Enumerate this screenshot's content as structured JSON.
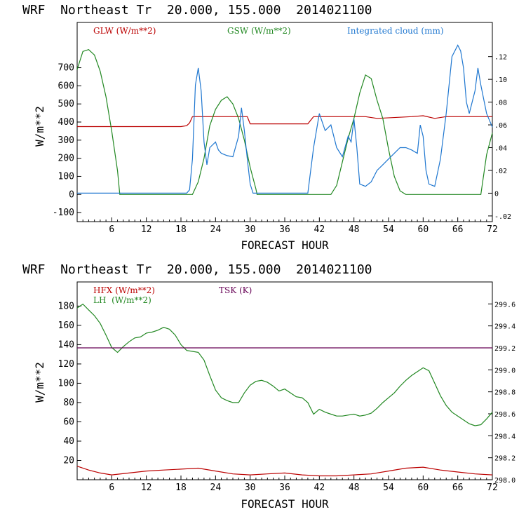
{
  "chart_data": [
    {
      "type": "line",
      "title": "WRF  Northeast Tr  20.000, 155.000  2014021100",
      "xlabel": "FORECAST HOUR",
      "ylabel": "W/m**2",
      "xlim": [
        0,
        72
      ],
      "ylim": [
        -150,
        950
      ],
      "y2lim": [
        -0.025,
        0.15
      ],
      "x_ticks": [
        6,
        12,
        18,
        24,
        30,
        36,
        42,
        48,
        54,
        60,
        66,
        72
      ],
      "y_ticks": [
        -100,
        0,
        100,
        200,
        300,
        400,
        500,
        600,
        700
      ],
      "y2_ticks": [
        -0.02,
        0,
        0.02,
        0.04,
        0.06,
        0.08,
        0.1,
        0.12
      ],
      "y2_tick_labels": [
        "-.02",
        "0",
        ".02",
        ".04",
        ".06",
        ".08",
        ".10",
        ".12"
      ],
      "series": [
        {
          "name": "GLW (W/m**2)",
          "color": "#bb0000",
          "axis": "left",
          "x": [
            0,
            18,
            19,
            19.5,
            20,
            29.5,
            30,
            40,
            40.5,
            41,
            46,
            50,
            52,
            58,
            60,
            62,
            64,
            72
          ],
          "y": [
            375,
            375,
            380,
            395,
            430,
            430,
            390,
            390,
            410,
            430,
            430,
            430,
            420,
            430,
            435,
            420,
            430,
            430
          ]
        },
        {
          "name": "GSW (W/m**2)",
          "color": "#228822",
          "axis": "left",
          "x": [
            0,
            1,
            2,
            3,
            4,
            5,
            6,
            7,
            7.4,
            20,
            21,
            22,
            23,
            24,
            25,
            26,
            27,
            28,
            29,
            30,
            31,
            31.2,
            44,
            45,
            46,
            47,
            48,
            49,
            50,
            51,
            52,
            53,
            54,
            55,
            56,
            57,
            70,
            70.5,
            71,
            72
          ],
          "y": [
            690,
            790,
            800,
            770,
            680,
            540,
            350,
            130,
            0,
            0,
            70,
            200,
            380,
            470,
            520,
            540,
            500,
            420,
            300,
            150,
            30,
            0,
            0,
            50,
            180,
            310,
            420,
            560,
            660,
            640,
            520,
            420,
            250,
            100,
            20,
            0,
            0,
            110,
            220,
            340
          ]
        },
        {
          "name": "Integrated cloud (mm)",
          "color": "#1f77d0",
          "axis": "right",
          "x": [
            0,
            19,
            19.5,
            20,
            20.5,
            21,
            21.5,
            22,
            22.5,
            23,
            24,
            24.5,
            25,
            26,
            27,
            28,
            28.5,
            29,
            29.5,
            30,
            30.5,
            31,
            40,
            41,
            42,
            43,
            44,
            45,
            46,
            47,
            47.5,
            48,
            48.5,
            49,
            50,
            51,
            52,
            53,
            54,
            55,
            56,
            57,
            58,
            59,
            59.5,
            60,
            60.5,
            61,
            62,
            63,
            64,
            65,
            66,
            66.5,
            67,
            67.5,
            68,
            69,
            69.5,
            70,
            71,
            72
          ],
          "y": [
            0,
            0,
            0.003,
            0.03,
            0.095,
            0.11,
            0.09,
            0.045,
            0.025,
            0.04,
            0.045,
            0.038,
            0.035,
            0.033,
            0.032,
            0.05,
            0.075,
            0.055,
            0.03,
            0.008,
            0,
            0,
            0,
            0.04,
            0.07,
            0.055,
            0.06,
            0.04,
            0.032,
            0.05,
            0.045,
            0.065,
            0.04,
            0.008,
            0.006,
            0.01,
            0.02,
            0.025,
            0.03,
            0.035,
            0.04,
            0.04,
            0.038,
            0.035,
            0.06,
            0.05,
            0.02,
            0.008,
            0.006,
            0.03,
            0.07,
            0.12,
            0.13,
            0.125,
            0.11,
            0.08,
            0.07,
            0.09,
            0.11,
            0.095,
            0.07,
            0.058
          ]
        }
      ]
    },
    {
      "type": "line",
      "title": "WRF  Northeast Tr  20.000, 155.000  2014021100",
      "xlabel": "FORECAST HOUR",
      "ylabel": "W/m**2",
      "xlim": [
        0,
        72
      ],
      "ylim": [
        0,
        205
      ],
      "y2lim": [
        298.0,
        299.8
      ],
      "x_ticks": [
        6,
        12,
        18,
        24,
        30,
        36,
        42,
        48,
        54,
        60,
        66,
        72
      ],
      "y_ticks": [
        20,
        40,
        60,
        80,
        100,
        120,
        140,
        160,
        180
      ],
      "y2_ticks": [
        298.0,
        298.2,
        298.4,
        298.6,
        298.8,
        299.0,
        299.2,
        299.4,
        299.6
      ],
      "y2_tick_labels": [
        "298.0",
        "298.2",
        "298.4",
        "298.6",
        "298.8",
        "299.0",
        "299.2",
        "299.4",
        "299.6"
      ],
      "series": [
        {
          "name": "HFX (W/m**2)",
          "color": "#bb0000",
          "axis": "left",
          "x": [
            0,
            2,
            4,
            6,
            9,
            12,
            15,
            18,
            21,
            24,
            27,
            30,
            33,
            36,
            39,
            42,
            45,
            48,
            51,
            54,
            57,
            60,
            63,
            66,
            69,
            72
          ],
          "y": [
            14,
            10,
            7,
            5,
            7,
            9,
            10,
            11,
            12,
            9,
            6,
            5,
            6,
            7,
            5,
            4,
            4,
            5,
            6,
            9,
            12,
            13,
            10,
            8,
            6,
            5
          ]
        },
        {
          "name": "LH  (W/m**2)",
          "color": "#228822",
          "axis": "left",
          "x": [
            0,
            1,
            2,
            3,
            4,
            5,
            6,
            7,
            8,
            9,
            10,
            11,
            12,
            13,
            14,
            15,
            16,
            17,
            18,
            19,
            20,
            21,
            22,
            23,
            24,
            25,
            26,
            27,
            28,
            29,
            30,
            31,
            32,
            33,
            34,
            35,
            36,
            37,
            38,
            39,
            40,
            41,
            42,
            43,
            44,
            45,
            46,
            47,
            48,
            49,
            50,
            51,
            52,
            53,
            54,
            55,
            56,
            57,
            58,
            59,
            60,
            61,
            62,
            63,
            64,
            65,
            66,
            67,
            68,
            69,
            70,
            71,
            72
          ],
          "y": [
            178,
            182,
            176,
            170,
            162,
            150,
            137,
            132,
            138,
            143,
            147,
            148,
            152,
            153,
            155,
            158,
            156,
            150,
            140,
            134,
            133,
            132,
            124,
            108,
            93,
            85,
            82,
            80,
            80,
            90,
            98,
            102,
            103,
            101,
            97,
            92,
            94,
            90,
            86,
            85,
            80,
            68,
            73,
            70,
            68,
            66,
            66,
            67,
            68,
            66,
            67,
            69,
            74,
            80,
            85,
            90,
            97,
            103,
            108,
            112,
            116,
            113,
            100,
            87,
            77,
            70,
            66,
            62,
            58,
            56,
            57,
            63,
            70
          ]
        },
        {
          "name": "TSK (K)",
          "color": "#660055",
          "axis": "right",
          "x": [
            0,
            72
          ],
          "y": [
            299.2,
            299.2
          ]
        }
      ]
    }
  ]
}
